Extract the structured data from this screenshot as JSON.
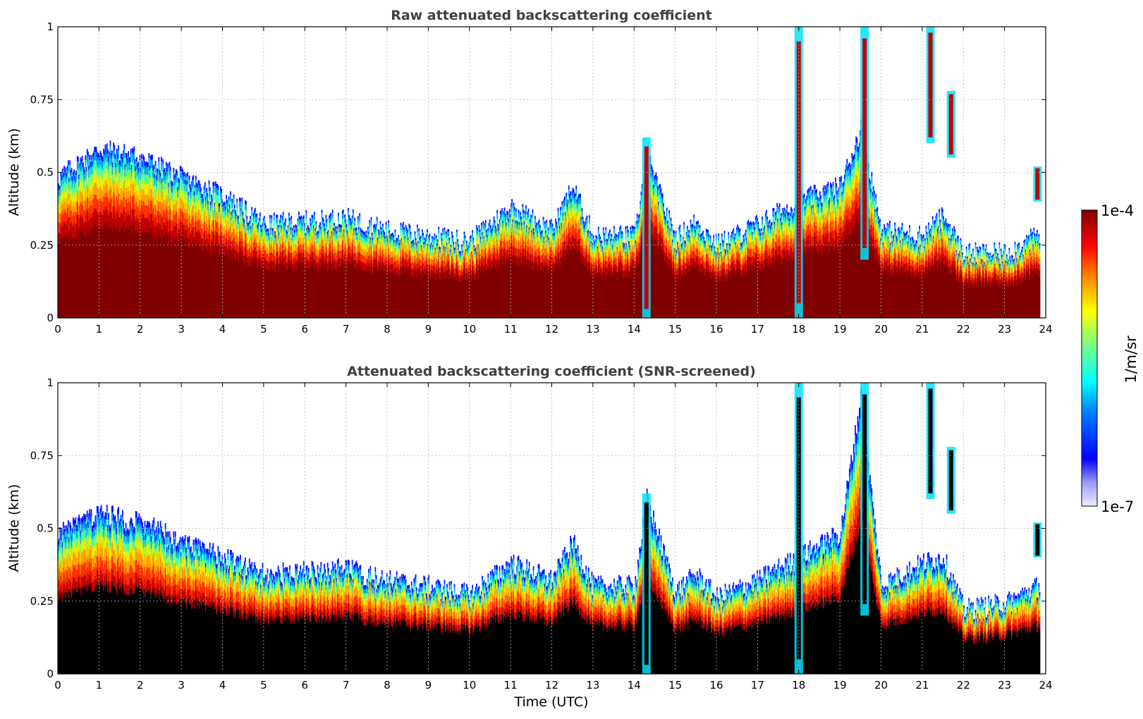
{
  "figure": {
    "colorbar": {
      "label": "1/m/sr",
      "max_label": "1e-4",
      "min_label": "1e-7",
      "range": [
        1e-07,
        0.0001
      ],
      "scale": "log",
      "colormap": "jet-like (white/lavender -> blue -> cyan -> green -> yellow -> orange -> red -> dark red)"
    }
  },
  "chart_data": [
    {
      "type": "heatmap",
      "title": "Raw attenuated backscattering coefficient",
      "xlabel": "",
      "ylabel": "Altitude (km)",
      "xlim": [
        0,
        24
      ],
      "ylim": [
        0,
        1
      ],
      "grid": true,
      "x_ticks": [
        "0",
        "1",
        "2",
        "3",
        "4",
        "5",
        "6",
        "7",
        "8",
        "9",
        "10",
        "11",
        "12",
        "13",
        "14",
        "15",
        "16",
        "17",
        "18",
        "19",
        "20",
        "21",
        "22",
        "23",
        "24"
      ],
      "y_ticks": [
        "0",
        "0.25",
        "0.5",
        "0.75",
        "1"
      ],
      "boundary_layer_top_km": {
        "time_utc": [
          0,
          1,
          2,
          3,
          4,
          5,
          6,
          7,
          8,
          9,
          10,
          11,
          12,
          12.5,
          13,
          14,
          14.3,
          15,
          15.5,
          16,
          17,
          18,
          19,
          19.5,
          20,
          21,
          21.5,
          22,
          23,
          23.8
        ],
        "top": [
          0.48,
          0.58,
          0.55,
          0.48,
          0.42,
          0.32,
          0.33,
          0.34,
          0.3,
          0.28,
          0.26,
          0.38,
          0.3,
          0.45,
          0.28,
          0.28,
          0.55,
          0.27,
          0.33,
          0.25,
          0.32,
          0.4,
          0.45,
          0.65,
          0.3,
          0.28,
          0.35,
          0.22,
          0.22,
          0.28
        ]
      },
      "cloud_features": [
        {
          "time_utc": 14.3,
          "alt_km": [
            0.0,
            0.62
          ]
        },
        {
          "time_utc": 18.0,
          "alt_km": [
            0.0,
            1.0
          ]
        },
        {
          "time_utc": 19.6,
          "alt_km": [
            0.2,
            1.0
          ]
        },
        {
          "time_utc": 21.2,
          "alt_km": [
            0.6,
            1.0
          ]
        },
        {
          "time_utc": 21.7,
          "alt_km": [
            0.55,
            0.78
          ]
        },
        {
          "time_utc": 23.8,
          "alt_km": [
            0.4,
            0.52
          ]
        }
      ]
    },
    {
      "type": "heatmap",
      "title": "Attenuated backscattering coefficient (SNR-screened)",
      "xlabel": "Time (UTC)",
      "ylabel": "Altitude (km)",
      "xlim": [
        0,
        24
      ],
      "ylim": [
        0,
        1
      ],
      "grid": true,
      "x_ticks": [
        "0",
        "1",
        "2",
        "3",
        "4",
        "5",
        "6",
        "7",
        "8",
        "9",
        "10",
        "11",
        "12",
        "13",
        "14",
        "15",
        "16",
        "17",
        "18",
        "19",
        "20",
        "21",
        "22",
        "23",
        "24"
      ],
      "y_ticks": [
        "0",
        "0.25",
        "0.5",
        "0.75",
        "1"
      ],
      "screened_below_km": 0.15,
      "boundary_layer_top_km": {
        "time_utc": [
          0,
          1,
          2,
          3,
          4,
          5,
          6,
          7,
          8,
          9,
          10,
          11,
          12,
          12.5,
          13,
          14,
          14.3,
          15,
          15.5,
          16,
          17,
          18,
          19,
          19.5,
          20,
          21,
          21.5,
          22,
          23,
          23.8
        ],
        "top": [
          0.48,
          0.55,
          0.52,
          0.45,
          0.4,
          0.34,
          0.35,
          0.36,
          0.32,
          0.3,
          0.27,
          0.38,
          0.32,
          0.45,
          0.3,
          0.3,
          0.6,
          0.28,
          0.34,
          0.26,
          0.32,
          0.4,
          0.48,
          0.95,
          0.3,
          0.38,
          0.4,
          0.22,
          0.24,
          0.3
        ]
      },
      "cloud_features": [
        {
          "time_utc": 14.3,
          "alt_km": [
            0.0,
            0.62
          ]
        },
        {
          "time_utc": 18.0,
          "alt_km": [
            0.0,
            1.0
          ]
        },
        {
          "time_utc": 19.6,
          "alt_km": [
            0.2,
            1.0
          ]
        },
        {
          "time_utc": 21.2,
          "alt_km": [
            0.6,
            1.0
          ]
        },
        {
          "time_utc": 21.7,
          "alt_km": [
            0.55,
            0.78
          ]
        },
        {
          "time_utc": 23.8,
          "alt_km": [
            0.4,
            0.52
          ]
        }
      ]
    }
  ]
}
